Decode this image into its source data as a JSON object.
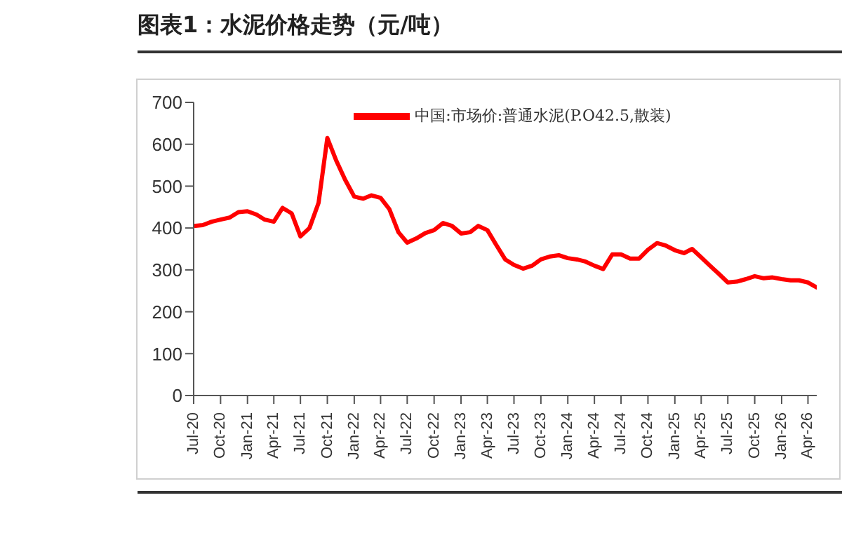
{
  "chart_data": {
    "type": "line",
    "title": "图表1：水泥价格走势（元/吨）",
    "x": [
      "2020-07",
      "2020-08",
      "2020-09",
      "2020-10",
      "2020-11",
      "2020-12",
      "2021-01",
      "2021-02",
      "2021-03",
      "2021-04",
      "2021-05",
      "2021-06",
      "2021-07",
      "2021-08",
      "2021-09",
      "2021-10",
      "2021-11",
      "2021-12",
      "2022-01",
      "2022-02",
      "2022-03",
      "2022-04",
      "2022-05",
      "2022-06",
      "2022-07",
      "2022-08",
      "2022-09",
      "2022-10",
      "2022-11",
      "2022-12",
      "2023-01",
      "2023-02",
      "2023-03",
      "2023-04",
      "2023-05",
      "2023-06",
      "2023-07",
      "2023-08",
      "2023-09",
      "2023-10",
      "2023-11",
      "2023-12",
      "2024-01",
      "2024-02",
      "2024-03",
      "2024-04",
      "2024-05",
      "2024-06",
      "2024-07",
      "2024-08",
      "2024-09",
      "2024-10",
      "2024-11",
      "2024-12",
      "2025-01",
      "2025-02",
      "2025-03",
      "2025-04",
      "2025-05",
      "2025-06",
      "2025-07",
      "2025-08",
      "2025-09",
      "2025-10",
      "2025-11",
      "2025-12",
      "2026-01",
      "2026-02",
      "2026-03",
      "2026-04",
      "2026-05"
    ],
    "series": [
      {
        "name": "中国:市场价:普通水泥(P.O42.5,散装)",
        "color": "#ff0000",
        "values": [
          405,
          407,
          415,
          420,
          425,
          438,
          440,
          432,
          420,
          415,
          448,
          435,
          380,
          400,
          460,
          615,
          560,
          515,
          475,
          470,
          478,
          472,
          445,
          390,
          365,
          375,
          388,
          395,
          412,
          405,
          387,
          390,
          405,
          395,
          360,
          325,
          312,
          303,
          310,
          325,
          332,
          335,
          328,
          325,
          320,
          310,
          302,
          337,
          337,
          327,
          327,
          348,
          364,
          358,
          347,
          340,
          350,
          330,
          310,
          290,
          270,
          272,
          278,
          285,
          280,
          282,
          278,
          275,
          275,
          270,
          258
        ]
      }
    ],
    "xlim": [
      "2020-07",
      "2026-05"
    ],
    "xticks": [
      {
        "value": "2020-07",
        "label": "Jul-20"
      },
      {
        "value": "2020-10",
        "label": "Oct-20"
      },
      {
        "value": "2021-01",
        "label": "Jan-21"
      },
      {
        "value": "2021-04",
        "label": "Apr-21"
      },
      {
        "value": "2021-07",
        "label": "Jul-21"
      },
      {
        "value": "2021-10",
        "label": "Oct-21"
      },
      {
        "value": "2022-01",
        "label": "Jan-22"
      },
      {
        "value": "2022-04",
        "label": "Apr-22"
      },
      {
        "value": "2022-07",
        "label": "Jul-22"
      },
      {
        "value": "2022-10",
        "label": "Oct-22"
      },
      {
        "value": "2023-01",
        "label": "Jan-23"
      },
      {
        "value": "2023-04",
        "label": "Apr-23"
      },
      {
        "value": "2023-07",
        "label": "Jul-23"
      },
      {
        "value": "2023-10",
        "label": "Oct-23"
      },
      {
        "value": "2024-01",
        "label": "Jan-24"
      },
      {
        "value": "2024-04",
        "label": "Apr-24"
      },
      {
        "value": "2024-07",
        "label": "Jul-24"
      },
      {
        "value": "2024-10",
        "label": "Oct-24"
      },
      {
        "value": "2025-01",
        "label": "Jan-25"
      },
      {
        "value": "2025-04",
        "label": "Apr-25"
      },
      {
        "value": "2025-07",
        "label": "Jul-25"
      },
      {
        "value": "2025-10",
        "label": "Oct-25"
      },
      {
        "value": "2026-01",
        "label": "Jan-26"
      },
      {
        "value": "2026-04",
        "label": "Apr-26"
      }
    ],
    "ylim": [
      0,
      700
    ],
    "yticks": [
      0,
      100,
      200,
      300,
      400,
      500,
      600,
      700
    ],
    "grid": false,
    "legend": "top",
    "marker": "none",
    "line_style": "solid"
  }
}
